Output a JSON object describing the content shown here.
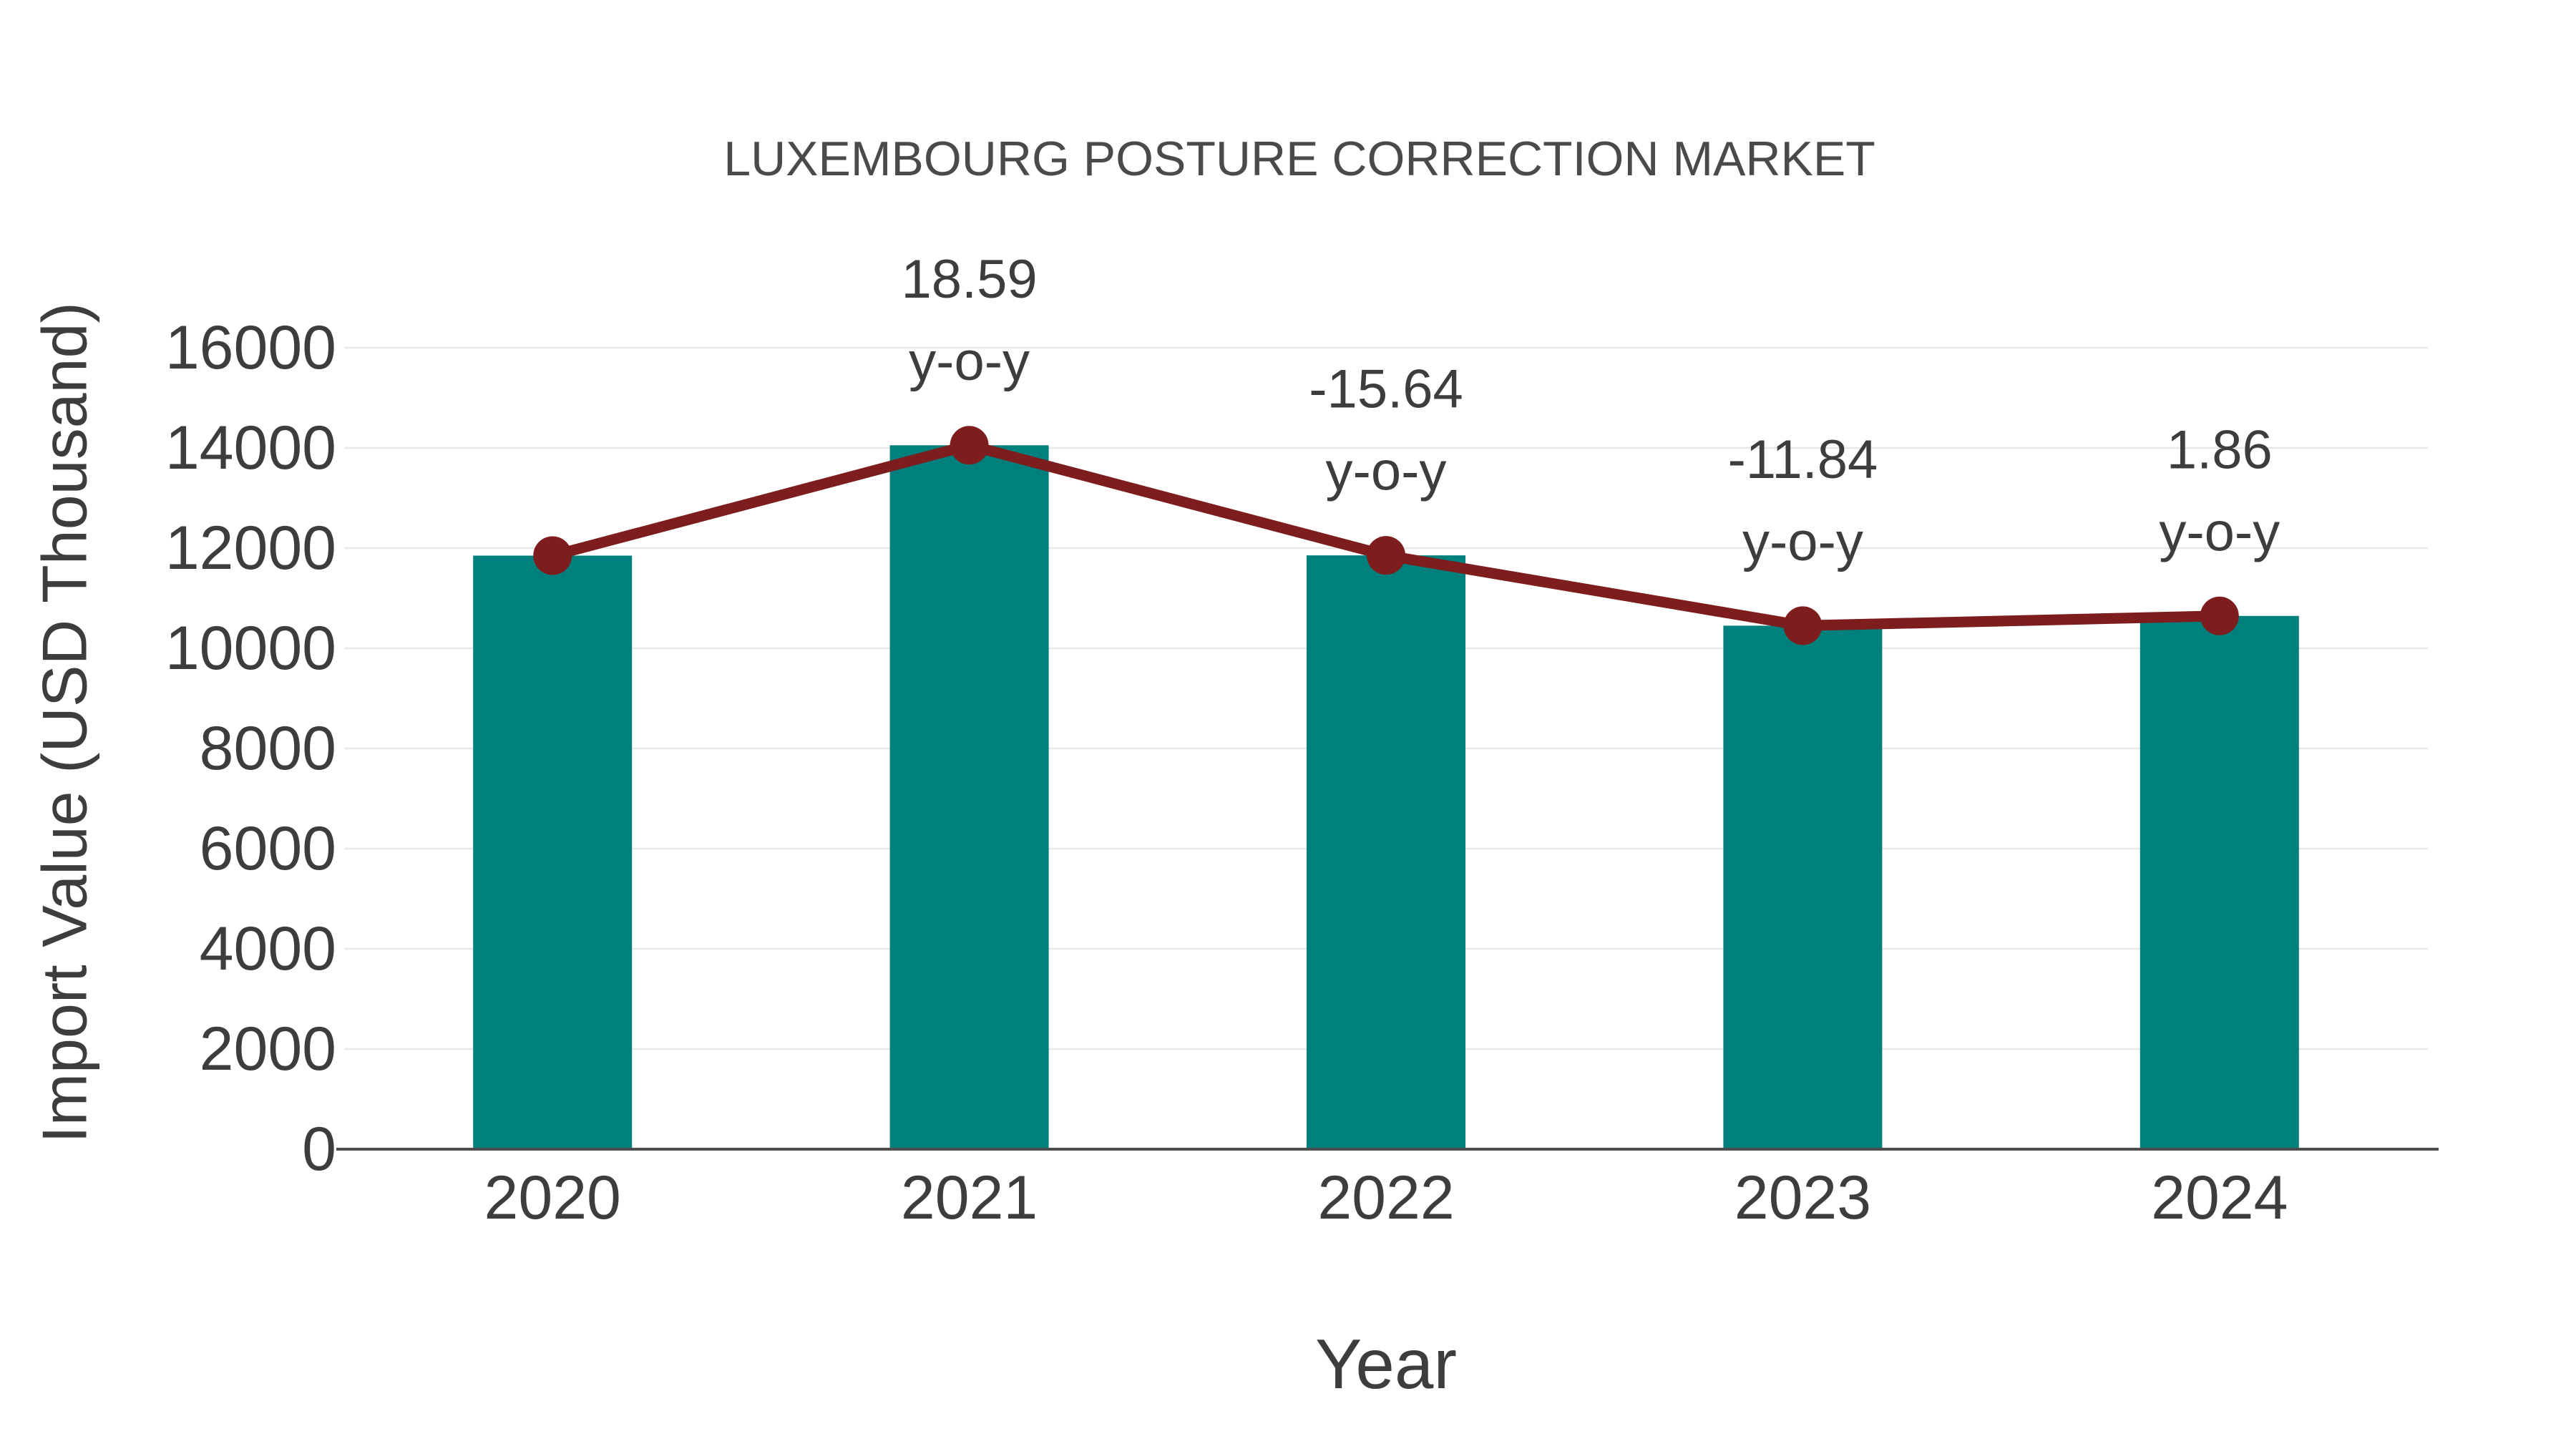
{
  "chart_data": {
    "type": "bar+line",
    "title": "LUXEMBOURG POSTURE CORRECTION MARKET",
    "xlabel": "Year",
    "ylabel": "Import Value (USD Thousand)",
    "categories": [
      "2020",
      "2021",
      "2022",
      "2023",
      "2024"
    ],
    "series": [
      {
        "name": "Import Value",
        "type": "bar",
        "color": "#00807d",
        "values": [
          11850,
          14053,
          11855,
          10451,
          10646
        ]
      },
      {
        "name": "y-o-y change",
        "type": "line",
        "color": "#7d1d1d",
        "values": [
          11850,
          14053,
          11855,
          10451,
          10646
        ]
      }
    ],
    "annotations": [
      {
        "category_index": 1,
        "lines": [
          "18.59",
          "y-o-y"
        ]
      },
      {
        "category_index": 2,
        "lines": [
          "-15.64",
          "y-o-y"
        ]
      },
      {
        "category_index": 3,
        "lines": [
          "-11.84",
          "y-o-y"
        ]
      },
      {
        "category_index": 4,
        "lines": [
          "1.86",
          "y-o-y"
        ]
      }
    ],
    "y_ticks": [
      0,
      2000,
      4000,
      6000,
      8000,
      10000,
      12000,
      14000,
      16000
    ],
    "ylim": [
      0,
      16000
    ],
    "grid": true,
    "legend": false,
    "colors": {
      "bar": "#00807d",
      "line": "#7d1d1d",
      "gridline": "#e8e8e8",
      "axis_line": "#4d4d4d",
      "tick_text": "#3d3d3d",
      "title_text": "#4a4a4a",
      "background": "#ffffff"
    }
  }
}
